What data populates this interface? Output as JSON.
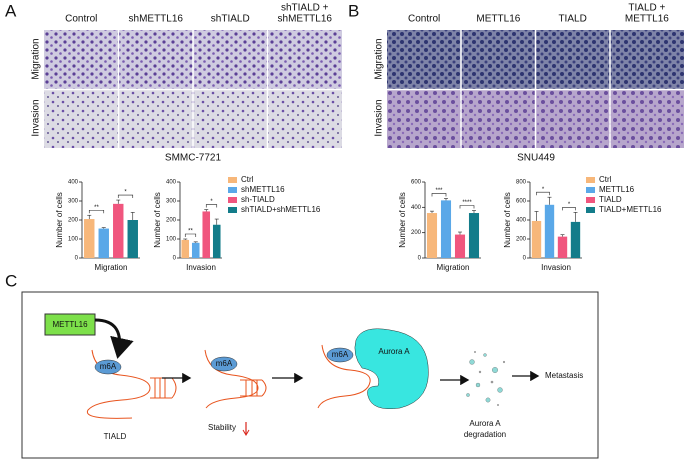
{
  "panels": {
    "A": {
      "letter": "A",
      "column_labels": [
        "Control",
        "shMETTL16",
        "shTIALD",
        [
          "shTIALD +",
          "shMETTL16"
        ]
      ],
      "row_labels": [
        "Migration",
        "Invasion"
      ],
      "cell_line": "SMMC-7721"
    },
    "B": {
      "letter": "B",
      "column_labels": [
        "Control",
        "METTL16",
        "TIALD",
        [
          "TIALD +",
          "METTL16"
        ]
      ],
      "row_labels": [
        "Migration",
        "Invasion"
      ],
      "cell_line": "SNU449"
    },
    "C": {
      "letter": "C",
      "mettl16": "METTL16",
      "m6a": [
        "m6A",
        "m6A",
        "m6A"
      ],
      "tiald": "TIALD",
      "stability": "Stability",
      "aurora": "Aurora A",
      "degradation": [
        "Aurora A",
        "degradation"
      ],
      "metastasis": "Metastasis"
    }
  },
  "chart_data": [
    {
      "type": "bar",
      "xlabel": "Migration",
      "ylabel": "Number of cells",
      "ylim": [
        0,
        400
      ],
      "yticks": [
        0,
        100,
        200,
        300,
        400
      ],
      "series": [
        {
          "name": "Ctrl",
          "color": "#f7b77a",
          "values": [
            205
          ],
          "errors": [
            20
          ]
        },
        {
          "name": "shMETTL16",
          "color": "#5aa8e8",
          "values": [
            155
          ],
          "errors": [
            5
          ]
        },
        {
          "name": "sh-TIALD",
          "color": "#f0567e",
          "values": [
            285
          ],
          "errors": [
            20
          ]
        },
        {
          "name": "shTIALD+shMETTL16",
          "color": "#137c8a",
          "values": [
            200
          ],
          "errors": [
            40
          ]
        }
      ],
      "annotations": [
        "**",
        "*"
      ]
    },
    {
      "type": "bar",
      "xlabel": "Invasion",
      "ylabel": "Number of cells",
      "ylim": [
        0,
        400
      ],
      "yticks": [
        0,
        100,
        200,
        300,
        400
      ],
      "series": [
        {
          "color": "#f7b77a",
          "values": [
            95
          ],
          "errors": [
            5
          ]
        },
        {
          "color": "#5aa8e8",
          "values": [
            80
          ],
          "errors": [
            5
          ]
        },
        {
          "color": "#f0567e",
          "values": [
            245
          ],
          "errors": [
            10
          ]
        },
        {
          "color": "#137c8a",
          "values": [
            175
          ],
          "errors": [
            30
          ]
        }
      ],
      "annotations": [
        "**",
        "*"
      ]
    },
    {
      "type": "bar",
      "xlabel": "Migration",
      "ylabel": "Number of cells",
      "ylim": [
        0,
        600
      ],
      "yticks": [
        0,
        200,
        400,
        600
      ],
      "series": [
        {
          "name": "Ctrl",
          "color": "#f7b77a",
          "values": [
            355
          ],
          "errors": [
            15
          ]
        },
        {
          "name": "METTL16",
          "color": "#5aa8e8",
          "values": [
            455
          ],
          "errors": [
            15
          ]
        },
        {
          "name": "TIALD",
          "color": "#f0567e",
          "values": [
            185
          ],
          "errors": [
            20
          ]
        },
        {
          "name": "TIALD+METTL16",
          "color": "#137c8a",
          "values": [
            355
          ],
          "errors": [
            20
          ]
        }
      ],
      "annotations": [
        "***",
        "****"
      ]
    },
    {
      "type": "bar",
      "xlabel": "Invasion",
      "ylabel": "Number of cells",
      "ylim": [
        0,
        800
      ],
      "yticks": [
        0,
        200,
        400,
        600,
        800
      ],
      "series": [
        {
          "color": "#f7b77a",
          "values": [
            390
          ],
          "errors": [
            100
          ]
        },
        {
          "color": "#5aa8e8",
          "values": [
            560
          ],
          "errors": [
            80
          ]
        },
        {
          "color": "#f0567e",
          "values": [
            225
          ],
          "errors": [
            20
          ]
        },
        {
          "color": "#137c8a",
          "values": [
            380
          ],
          "errors": [
            100
          ]
        }
      ],
      "annotations": [
        "*",
        "*"
      ]
    }
  ]
}
